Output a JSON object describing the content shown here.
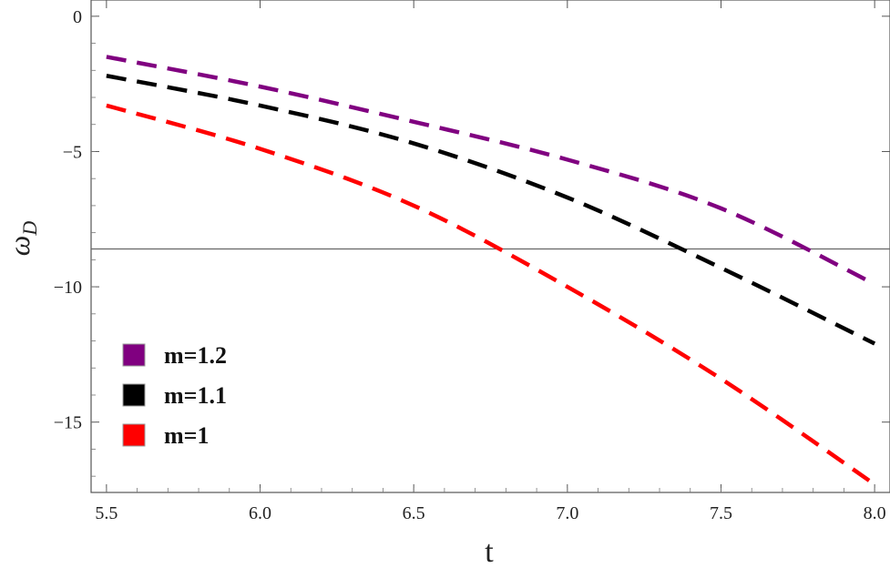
{
  "chart_data": {
    "type": "line",
    "xlabel": "t",
    "ylabel": "ω",
    "ylabel_sub": "D",
    "xlim": [
      5.45,
      8.05
    ],
    "ylim": [
      -17.6,
      0.6
    ],
    "x_ticks": [
      5.5,
      6.0,
      6.5,
      7.0,
      7.5,
      8.0
    ],
    "x_tick_labels": [
      "5.5",
      "6.0",
      "6.5",
      "7.0",
      "7.5",
      "8.0"
    ],
    "y_ticks": [
      0,
      -5,
      -10,
      -15
    ],
    "y_tick_labels": [
      "0",
      "−5",
      "−10",
      "−15"
    ],
    "reference_line_y": -8.6,
    "legend_position": "bottom-left",
    "series": [
      {
        "name": "m=1.2",
        "color": "#800080",
        "x": [
          5.5,
          6.0,
          6.5,
          7.0,
          7.5,
          8.0
        ],
        "values": [
          -1.5,
          -2.6,
          -3.9,
          -5.3,
          -7.1,
          -9.9
        ]
      },
      {
        "name": "m=1.1",
        "color": "#000000",
        "x": [
          5.5,
          6.0,
          6.5,
          7.0,
          7.5,
          8.0
        ],
        "values": [
          -2.2,
          -3.3,
          -4.7,
          -6.7,
          -9.3,
          -12.1
        ]
      },
      {
        "name": "m=1",
        "color": "#ff0000",
        "x": [
          5.5,
          6.0,
          6.5,
          7.0,
          7.5,
          8.0
        ],
        "values": [
          -3.3,
          -4.9,
          -7.0,
          -10.0,
          -13.4,
          -17.3
        ]
      }
    ]
  }
}
